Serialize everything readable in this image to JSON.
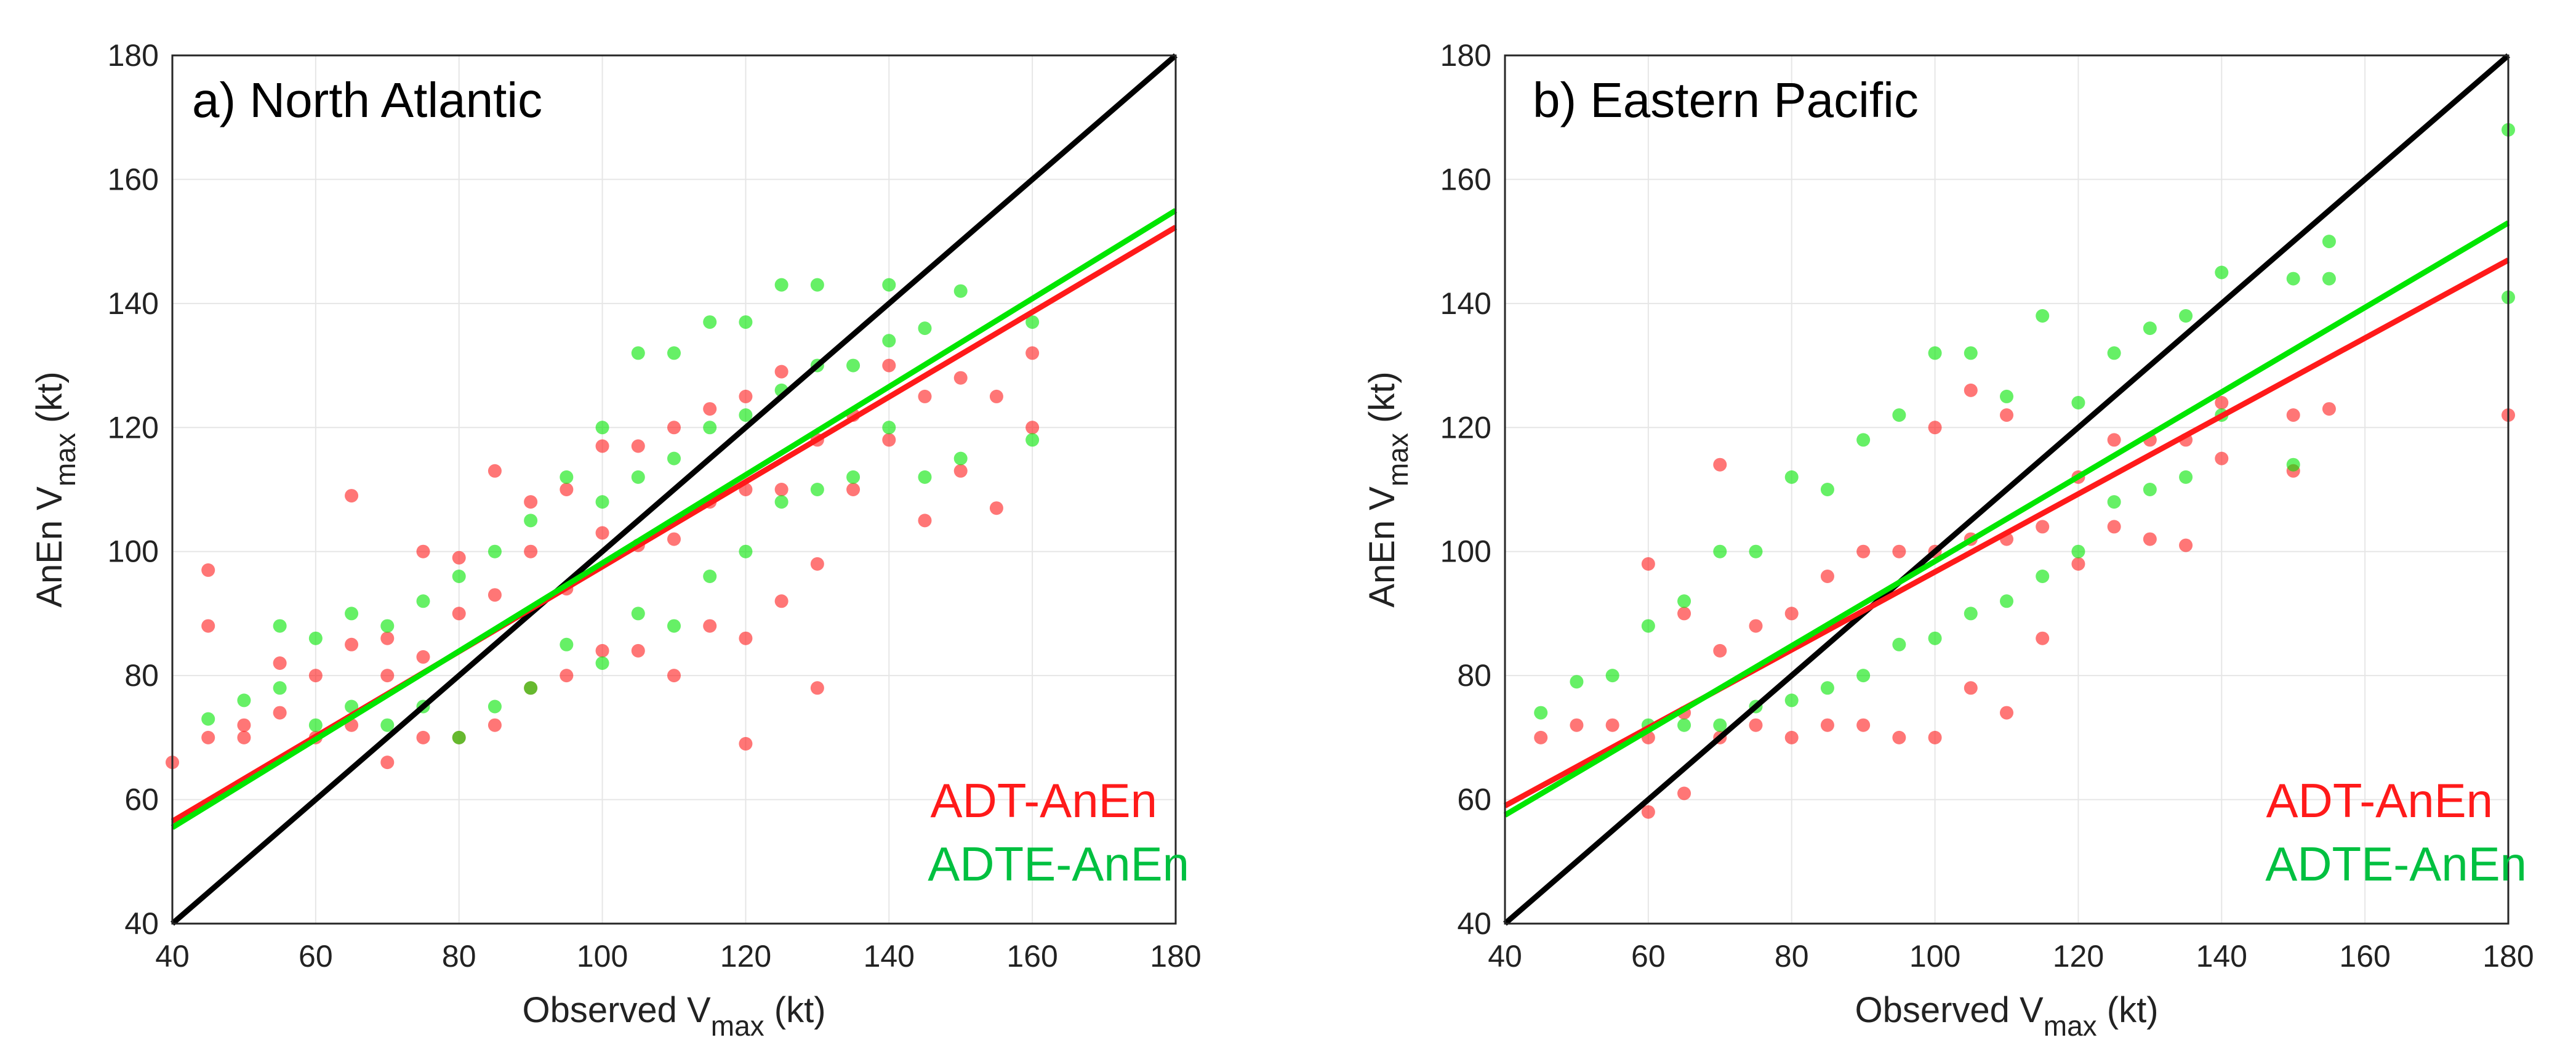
{
  "figure": {
    "colors": {
      "adt": "#ff1a1a",
      "adte": "#00e600",
      "adte_legend": "#00c040",
      "one_to_one": "#000000",
      "grid": "#e6e6e6",
      "axis": "#262626"
    }
  },
  "chart_data": [
    {
      "type": "scatter",
      "title": "a) North Atlantic",
      "xlabel": {
        "main": "Observed V",
        "sub": "max",
        "unit": " (kt)"
      },
      "ylabel": {
        "main": "AnEn V",
        "sub": "max",
        "unit": " (kt)"
      },
      "xlim": [
        40,
        180
      ],
      "ylim": [
        40,
        180
      ],
      "xticks": [
        40,
        60,
        80,
        100,
        120,
        140,
        160,
        180
      ],
      "yticks": [
        40,
        60,
        80,
        100,
        120,
        140,
        160,
        180
      ],
      "grid": true,
      "legend": {
        "placement": "bottom-right",
        "entries": [
          "ADT-AnEn",
          "ADTE-AnEn"
        ]
      },
      "lines": [
        {
          "name": "1:1",
          "x": [
            40,
            180
          ],
          "y": [
            40,
            180
          ]
        },
        {
          "name": "ADT-AnEn fit",
          "x": [
            40,
            180
          ],
          "y": [
            56.5,
            152.3
          ]
        },
        {
          "name": "ADTE-AnEn fit",
          "x": [
            40,
            180
          ],
          "y": [
            55.5,
            155.0
          ]
        }
      ],
      "series": [
        {
          "name": "ADT-AnEn",
          "points": [
            [
              40,
              66
            ],
            [
              45,
              70
            ],
            [
              45,
              97
            ],
            [
              45,
              88
            ],
            [
              50,
              72
            ],
            [
              50,
              70
            ],
            [
              55,
              74
            ],
            [
              55,
              82
            ],
            [
              60,
              70
            ],
            [
              60,
              80
            ],
            [
              65,
              72
            ],
            [
              65,
              85
            ],
            [
              65,
              109
            ],
            [
              70,
              66
            ],
            [
              70,
              80
            ],
            [
              70,
              86
            ],
            [
              75,
              70
            ],
            [
              75,
              83
            ],
            [
              75,
              100
            ],
            [
              80,
              70
            ],
            [
              80,
              90
            ],
            [
              80,
              99
            ],
            [
              85,
              72
            ],
            [
              85,
              93
            ],
            [
              85,
              113
            ],
            [
              90,
              78
            ],
            [
              90,
              100
            ],
            [
              90,
              108
            ],
            [
              95,
              80
            ],
            [
              95,
              94
            ],
            [
              95,
              110
            ],
            [
              100,
              84
            ],
            [
              100,
              103
            ],
            [
              100,
              117
            ],
            [
              105,
              84
            ],
            [
              105,
              101
            ],
            [
              105,
              117
            ],
            [
              110,
              80
            ],
            [
              110,
              102
            ],
            [
              110,
              120
            ],
            [
              115,
              88
            ],
            [
              115,
              108
            ],
            [
              115,
              123
            ],
            [
              120,
              86
            ],
            [
              120,
              110
            ],
            [
              120,
              125
            ],
            [
              120,
              69
            ],
            [
              125,
              92
            ],
            [
              125,
              110
            ],
            [
              125,
              129
            ],
            [
              130,
              98
            ],
            [
              130,
              118
            ],
            [
              130,
              78
            ],
            [
              135,
              110
            ],
            [
              135,
              122
            ],
            [
              140,
              118
            ],
            [
              140,
              130
            ],
            [
              145,
              105
            ],
            [
              145,
              125
            ],
            [
              150,
              113
            ],
            [
              150,
              128
            ],
            [
              155,
              107
            ],
            [
              155,
              125
            ],
            [
              160,
              120
            ],
            [
              160,
              132
            ]
          ]
        },
        {
          "name": "ADTE-AnEn",
          "points": [
            [
              45,
              73
            ],
            [
              50,
              76
            ],
            [
              55,
              78
            ],
            [
              55,
              88
            ],
            [
              60,
              72
            ],
            [
              60,
              86
            ],
            [
              65,
              75
            ],
            [
              65,
              90
            ],
            [
              70,
              72
            ],
            [
              70,
              88
            ],
            [
              75,
              75
            ],
            [
              75,
              92
            ],
            [
              80,
              70
            ],
            [
              80,
              96
            ],
            [
              85,
              75
            ],
            [
              85,
              100
            ],
            [
              90,
              78
            ],
            [
              90,
              105
            ],
            [
              95,
              85
            ],
            [
              95,
              112
            ],
            [
              100,
              82
            ],
            [
              100,
              108
            ],
            [
              100,
              120
            ],
            [
              105,
              90
            ],
            [
              105,
              112
            ],
            [
              105,
              132
            ],
            [
              110,
              88
            ],
            [
              110,
              115
            ],
            [
              110,
              132
            ],
            [
              115,
              96
            ],
            [
              115,
              120
            ],
            [
              115,
              137
            ],
            [
              120,
              100
            ],
            [
              120,
              122
            ],
            [
              120,
              137
            ],
            [
              125,
              108
            ],
            [
              125,
              126
            ],
            [
              125,
              143
            ],
            [
              130,
              110
            ],
            [
              130,
              130
            ],
            [
              130,
              143
            ],
            [
              135,
              112
            ],
            [
              135,
              130
            ],
            [
              140,
              120
            ],
            [
              140,
              134
            ],
            [
              140,
              143
            ],
            [
              145,
              112
            ],
            [
              145,
              136
            ],
            [
              150,
              115
            ],
            [
              150,
              142
            ],
            [
              160,
              118
            ],
            [
              160,
              137
            ]
          ]
        }
      ]
    },
    {
      "type": "scatter",
      "title": "b) Eastern Pacific",
      "xlabel": {
        "main": "Observed V",
        "sub": "max",
        "unit": " (kt)"
      },
      "ylabel": {
        "main": "AnEn V",
        "sub": "max",
        "unit": " (kt)"
      },
      "xlim": [
        40,
        180
      ],
      "ylim": [
        40,
        180
      ],
      "xticks": [
        40,
        60,
        80,
        100,
        120,
        140,
        160,
        180
      ],
      "yticks": [
        40,
        60,
        80,
        100,
        120,
        140,
        160,
        180
      ],
      "grid": true,
      "legend": {
        "placement": "bottom-right",
        "entries": [
          "ADT-AnEn",
          "ADTE-AnEn"
        ]
      },
      "lines": [
        {
          "name": "1:1",
          "x": [
            40,
            180
          ],
          "y": [
            40,
            180
          ]
        },
        {
          "name": "ADT-AnEn fit",
          "x": [
            40,
            180
          ],
          "y": [
            59.0,
            147.0
          ]
        },
        {
          "name": "ADTE-AnEn fit",
          "x": [
            40,
            180
          ],
          "y": [
            57.5,
            153.0
          ]
        }
      ],
      "series": [
        {
          "name": "ADT-AnEn",
          "points": [
            [
              45,
              70
            ],
            [
              50,
              72
            ],
            [
              55,
              72
            ],
            [
              60,
              58
            ],
            [
              60,
              70
            ],
            [
              60,
              98
            ],
            [
              65,
              61
            ],
            [
              65,
              74
            ],
            [
              65,
              90
            ],
            [
              70,
              70
            ],
            [
              70,
              84
            ],
            [
              70,
              114
            ],
            [
              75,
              72
            ],
            [
              75,
              88
            ],
            [
              80,
              70
            ],
            [
              80,
              90
            ],
            [
              85,
              72
            ],
            [
              85,
              96
            ],
            [
              90,
              72
            ],
            [
              90,
              100
            ],
            [
              95,
              70
            ],
            [
              95,
              100
            ],
            [
              100,
              70
            ],
            [
              100,
              100
            ],
            [
              100,
              120
            ],
            [
              105,
              78
            ],
            [
              105,
              102
            ],
            [
              105,
              126
            ],
            [
              110,
              74
            ],
            [
              110,
              102
            ],
            [
              110,
              122
            ],
            [
              115,
              86
            ],
            [
              115,
              104
            ],
            [
              120,
              98
            ],
            [
              120,
              112
            ],
            [
              125,
              104
            ],
            [
              125,
              118
            ],
            [
              130,
              102
            ],
            [
              130,
              118
            ],
            [
              135,
              101
            ],
            [
              135,
              118
            ],
            [
              140,
              115
            ],
            [
              140,
              124
            ],
            [
              150,
              113
            ],
            [
              150,
              122
            ],
            [
              155,
              123
            ],
            [
              180,
              122
            ]
          ]
        },
        {
          "name": "ADTE-AnEn",
          "points": [
            [
              45,
              74
            ],
            [
              50,
              79
            ],
            [
              55,
              80
            ],
            [
              60,
              72
            ],
            [
              60,
              88
            ],
            [
              65,
              72
            ],
            [
              65,
              92
            ],
            [
              70,
              72
            ],
            [
              70,
              100
            ],
            [
              75,
              75
            ],
            [
              75,
              100
            ],
            [
              80,
              76
            ],
            [
              80,
              112
            ],
            [
              85,
              78
            ],
            [
              85,
              110
            ],
            [
              90,
              80
            ],
            [
              90,
              118
            ],
            [
              95,
              85
            ],
            [
              95,
              122
            ],
            [
              100,
              86
            ],
            [
              100,
              132
            ],
            [
              105,
              90
            ],
            [
              105,
              132
            ],
            [
              110,
              92
            ],
            [
              110,
              125
            ],
            [
              115,
              96
            ],
            [
              115,
              138
            ],
            [
              120,
              100
            ],
            [
              120,
              124
            ],
            [
              125,
              108
            ],
            [
              125,
              132
            ],
            [
              130,
              110
            ],
            [
              130,
              136
            ],
            [
              135,
              112
            ],
            [
              135,
              138
            ],
            [
              140,
              122
            ],
            [
              140,
              145
            ],
            [
              150,
              114
            ],
            [
              150,
              144
            ],
            [
              155,
              144
            ],
            [
              155,
              150
            ],
            [
              180,
              141
            ],
            [
              180,
              168
            ]
          ]
        }
      ]
    }
  ]
}
